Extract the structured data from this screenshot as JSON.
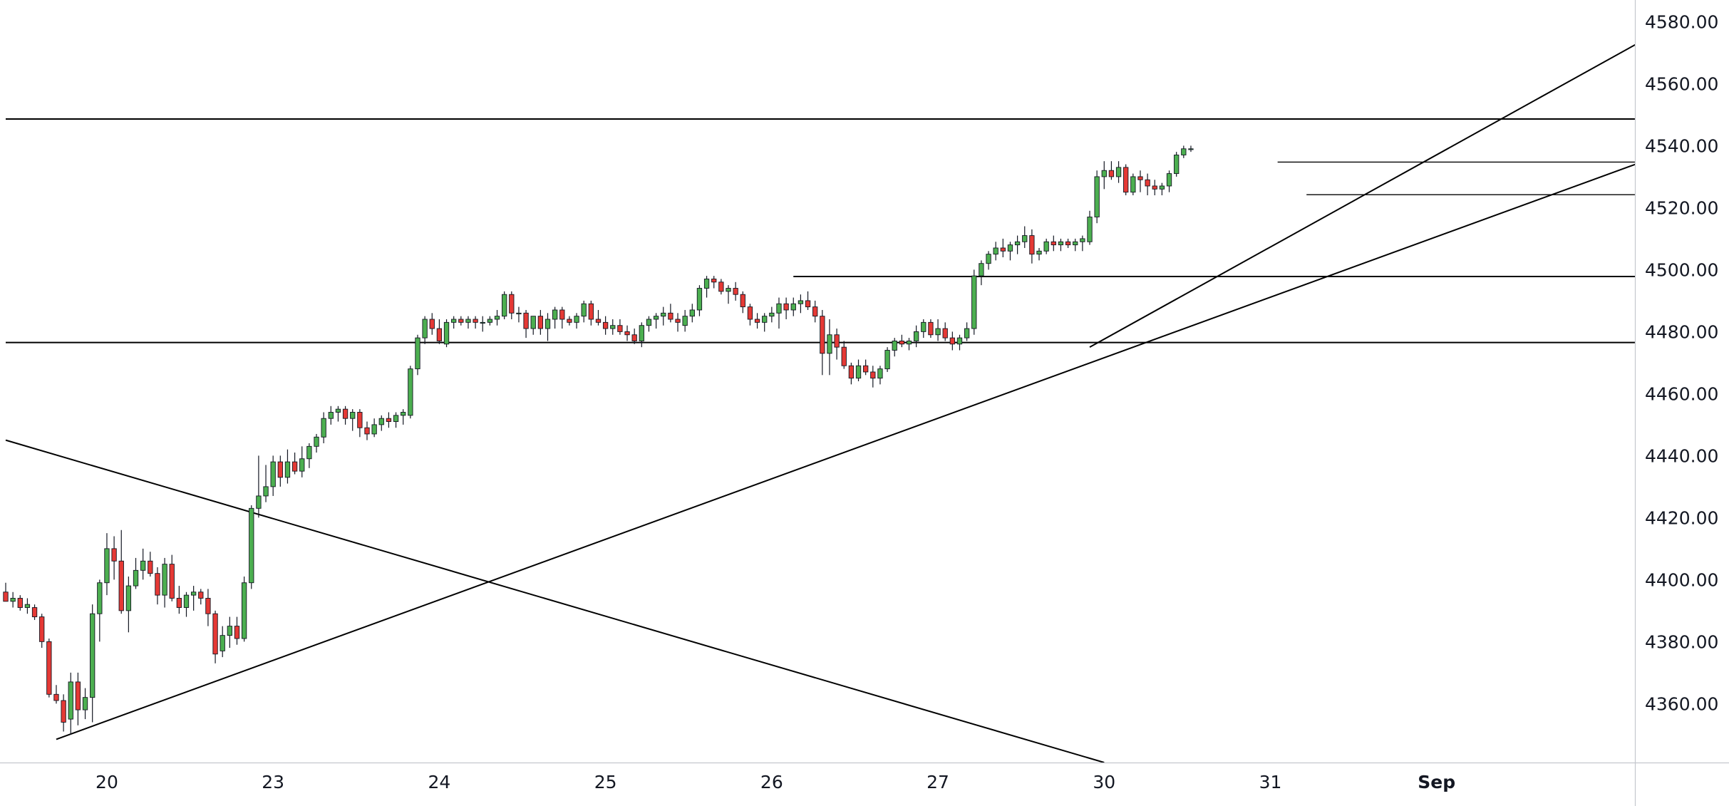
{
  "chart_data": {
    "type": "candlestick",
    "title": "",
    "xlabel": "",
    "ylabel": "",
    "ylim": [
      4341,
      4587
    ],
    "grid": false,
    "legend": "none",
    "colors": {
      "up": "#4caf50",
      "down": "#e53935",
      "wick": "#131722",
      "background": "#ffffff",
      "drawing": "#000000"
    },
    "price_axis": {
      "ticks": [
        4360,
        4380,
        4400,
        4420,
        4440,
        4460,
        4480,
        4500,
        4520,
        4540,
        4560,
        4580
      ],
      "labels": [
        "4360.00",
        "4380.00",
        "4400.00",
        "4420.00",
        "4440.00",
        "4460.00",
        "4480.00",
        "4500.00",
        "4520.00",
        "4540.00",
        "4560.00",
        "4580.00"
      ]
    },
    "time_axis": {
      "labels": [
        {
          "text": "20",
          "bar": 14,
          "bold": false
        },
        {
          "text": "23",
          "bar": 37,
          "bold": false
        },
        {
          "text": "24",
          "bar": 60,
          "bold": false
        },
        {
          "text": "25",
          "bar": 83,
          "bold": false
        },
        {
          "text": "26",
          "bar": 106,
          "bold": false
        },
        {
          "text": "27",
          "bar": 129,
          "bold": false
        },
        {
          "text": "30",
          "bar": 152,
          "bold": false
        },
        {
          "text": "31",
          "bar": 175,
          "bold": false
        },
        {
          "text": "Sep",
          "bar": 198,
          "bold": true
        }
      ]
    },
    "candles": [
      [
        4396,
        4399,
        4393,
        4393
      ],
      [
        4393,
        4396,
        4391,
        4394
      ],
      [
        4394,
        4395,
        4390,
        4391
      ],
      [
        4391,
        4394,
        4389,
        4392
      ],
      [
        4391,
        4392,
        4387,
        4388
      ],
      [
        4388,
        4389,
        4378,
        4380
      ],
      [
        4380,
        4381,
        4362,
        4363
      ],
      [
        4363,
        4366,
        4360,
        4361
      ],
      [
        4361,
        4363,
        4351,
        4354
      ],
      [
        4355,
        4370,
        4350,
        4367
      ],
      [
        4367,
        4370,
        4353,
        4358
      ],
      [
        4358,
        4365,
        4355,
        4362
      ],
      [
        4362,
        4392,
        4354,
        4389
      ],
      [
        4389,
        4400,
        4380,
        4399
      ],
      [
        4399,
        4415,
        4395,
        4410
      ],
      [
        4410,
        4414,
        4400,
        4406
      ],
      [
        4406,
        4416,
        4389,
        4390
      ],
      [
        4390,
        4401,
        4383,
        4398
      ],
      [
        4398,
        4407,
        4397,
        4403
      ],
      [
        4403,
        4410,
        4400,
        4406
      ],
      [
        4406,
        4409,
        4401,
        4402
      ],
      [
        4402,
        4404,
        4392,
        4395
      ],
      [
        4395,
        4407,
        4391,
        4405
      ],
      [
        4405,
        4408,
        4393,
        4394
      ],
      [
        4394,
        4398,
        4389,
        4391
      ],
      [
        4391,
        4396,
        4388,
        4395
      ],
      [
        4395,
        4398,
        4390,
        4396
      ],
      [
        4396,
        4397,
        4392,
        4394
      ],
      [
        4394,
        4397,
        4385,
        4389
      ],
      [
        4389,
        4390,
        4373,
        4376
      ],
      [
        4377,
        4385,
        4375,
        4382
      ],
      [
        4382,
        4388,
        4378,
        4385
      ],
      [
        4385,
        4388,
        4379,
        4381
      ],
      [
        4381,
        4401,
        4380,
        4399
      ],
      [
        4399,
        4424,
        4397,
        4423
      ],
      [
        4423,
        4440,
        4420,
        4427
      ],
      [
        4427,
        4437,
        4425,
        4430
      ],
      [
        4430,
        4440,
        4427,
        4438
      ],
      [
        4438,
        4440,
        4430,
        4433
      ],
      [
        4433,
        4442,
        4431,
        4438
      ],
      [
        4438,
        4441,
        4434,
        4435
      ],
      [
        4435,
        4443,
        4433,
        4439
      ],
      [
        4439,
        4444,
        4436,
        4443
      ],
      [
        4443,
        4447,
        4441,
        4446
      ],
      [
        4446,
        4454,
        4444,
        4452
      ],
      [
        4452,
        4456,
        4450,
        4454
      ],
      [
        4454,
        4456,
        4451,
        4455
      ],
      [
        4455,
        4456,
        4450,
        4452
      ],
      [
        4452,
        4455,
        4448,
        4454
      ],
      [
        4454,
        4455,
        4446,
        4449
      ],
      [
        4449,
        4451,
        4445,
        4447
      ],
      [
        4447,
        4452,
        4446,
        4450
      ],
      [
        4450,
        4453,
        4448,
        4452
      ],
      [
        4452,
        4454,
        4449,
        4451
      ],
      [
        4451,
        4454,
        4449,
        4453
      ],
      [
        4453,
        4455,
        4450,
        4454
      ],
      [
        4453,
        4469,
        4452,
        4468
      ],
      [
        4468,
        4479,
        4466,
        4478
      ],
      [
        4478,
        4485,
        4476,
        4484
      ],
      [
        4484,
        4486,
        4479,
        4481
      ],
      [
        4481,
        4484,
        4476,
        4477
      ],
      [
        4476,
        4484,
        4475,
        4483
      ],
      [
        4483,
        4485,
        4481,
        4484
      ],
      [
        4484,
        4485,
        4482,
        4483
      ],
      [
        4483,
        4485,
        4481,
        4484
      ],
      [
        4484,
        4485,
        4481,
        4483
      ],
      [
        4483,
        4485,
        4480,
        4483
      ],
      [
        4483,
        4485,
        4482,
        4484
      ],
      [
        4484,
        4487,
        4482,
        4485
      ],
      [
        4485,
        4493,
        4484,
        4492
      ],
      [
        4492,
        4493,
        4484,
        4486
      ],
      [
        4486,
        4488,
        4483,
        4486
      ],
      [
        4486,
        4487,
        4478,
        4481
      ],
      [
        4481,
        4485,
        4479,
        4485
      ],
      [
        4485,
        4487,
        4479,
        4481
      ],
      [
        4481,
        4486,
        4477,
        4484
      ],
      [
        4484,
        4488,
        4481,
        4487
      ],
      [
        4487,
        4488,
        4481,
        4484
      ],
      [
        4484,
        4485,
        4482,
        4483
      ],
      [
        4483,
        4486,
        4481,
        4485
      ],
      [
        4485,
        4490,
        4483,
        4489
      ],
      [
        4489,
        4490,
        4482,
        4484
      ],
      [
        4484,
        4487,
        4482,
        4483
      ],
      [
        4483,
        4485,
        4479,
        4481
      ],
      [
        4481,
        4484,
        4479,
        4482
      ],
      [
        4482,
        4484,
        4479,
        4480
      ],
      [
        4480,
        4482,
        4477,
        4479
      ],
      [
        4479,
        4481,
        4476,
        4477
      ],
      [
        4477,
        4483,
        4475,
        4482
      ],
      [
        4482,
        4485,
        4480,
        4484
      ],
      [
        4484,
        4486,
        4481,
        4485
      ],
      [
        4485,
        4488,
        4482,
        4486
      ],
      [
        4486,
        4489,
        4483,
        4484
      ],
      [
        4484,
        4486,
        4480,
        4483
      ],
      [
        4482,
        4487,
        4480,
        4485
      ],
      [
        4485,
        4489,
        4483,
        4487
      ],
      [
        4487,
        4495,
        4485,
        4494
      ],
      [
        4494,
        4498,
        4491,
        4497
      ],
      [
        4497,
        4498,
        4494,
        4496
      ],
      [
        4496,
        4497,
        4492,
        4493
      ],
      [
        4493,
        4495,
        4489,
        4494
      ],
      [
        4494,
        4496,
        4490,
        4492
      ],
      [
        4492,
        4493,
        4486,
        4488
      ],
      [
        4488,
        4489,
        4482,
        4484
      ],
      [
        4484,
        4486,
        4481,
        4483
      ],
      [
        4483,
        4486,
        4480,
        4485
      ],
      [
        4485,
        4488,
        4483,
        4486
      ],
      [
        4486,
        4491,
        4481,
        4489
      ],
      [
        4489,
        4491,
        4484,
        4487
      ],
      [
        4487,
        4491,
        4485,
        4489
      ],
      [
        4489,
        4492,
        4486,
        4490
      ],
      [
        4490,
        4493,
        4487,
        4488
      ],
      [
        4488,
        4490,
        4483,
        4485
      ],
      [
        4485,
        4487,
        4466,
        4473
      ],
      [
        4473,
        4484,
        4466,
        4479
      ],
      [
        4479,
        4481,
        4471,
        4475
      ],
      [
        4475,
        4477,
        4468,
        4469
      ],
      [
        4469,
        4470,
        4463,
        4465
      ],
      [
        4465,
        4471,
        4464,
        4469
      ],
      [
        4469,
        4471,
        4466,
        4467
      ],
      [
        4467,
        4469,
        4462,
        4465
      ],
      [
        4465,
        4469,
        4463,
        4468
      ],
      [
        4468,
        4475,
        4467,
        4474
      ],
      [
        4474,
        4478,
        4472,
        4477
      ],
      [
        4477,
        4479,
        4475,
        4476
      ],
      [
        4476,
        4478,
        4474,
        4477
      ],
      [
        4477,
        4482,
        4475,
        4480
      ],
      [
        4480,
        4484,
        4478,
        4483
      ],
      [
        4483,
        4484,
        4478,
        4479
      ],
      [
        4479,
        4484,
        4477,
        4481
      ],
      [
        4481,
        4483,
        4477,
        4478
      ],
      [
        4478,
        4480,
        4474,
        4476
      ],
      [
        4476,
        4479,
        4474,
        4478
      ],
      [
        4478,
        4483,
        4477,
        4481
      ],
      [
        4481,
        4500,
        4479,
        4498
      ],
      [
        4498,
        4503,
        4495,
        4502
      ],
      [
        4502,
        4506,
        4500,
        4505
      ],
      [
        4505,
        4509,
        4503,
        4507
      ],
      [
        4507,
        4510,
        4504,
        4506
      ],
      [
        4506,
        4509,
        4503,
        4508
      ],
      [
        4508,
        4511,
        4505,
        4509
      ],
      [
        4509,
        4514,
        4507,
        4511
      ],
      [
        4511,
        4513,
        4502,
        4505
      ],
      [
        4505,
        4507,
        4503,
        4506
      ],
      [
        4506,
        4510,
        4505,
        4509
      ],
      [
        4509,
        4511,
        4506,
        4508
      ],
      [
        4508,
        4510,
        4506,
        4509
      ],
      [
        4509,
        4510,
        4507,
        4508
      ],
      [
        4508,
        4510,
        4506,
        4509
      ],
      [
        4509,
        4511,
        4506,
        4510
      ],
      [
        4509,
        4519,
        4508,
        4517
      ],
      [
        4517,
        4532,
        4515,
        4530
      ],
      [
        4530,
        4535,
        4526,
        4532
      ],
      [
        4532,
        4535,
        4529,
        4530
      ],
      [
        4530,
        4535,
        4528,
        4533
      ],
      [
        4533,
        4534,
        4524,
        4525
      ],
      [
        4525,
        4531,
        4524,
        4530
      ],
      [
        4530,
        4532,
        4525,
        4529
      ],
      [
        4529,
        4531,
        4524,
        4527
      ],
      [
        4527,
        4529,
        4524,
        4526
      ],
      [
        4526,
        4528,
        4524,
        4527
      ],
      [
        4527,
        4532,
        4525,
        4531
      ],
      [
        4531,
        4538,
        4530,
        4537
      ],
      [
        4537,
        4540,
        4536,
        4539
      ],
      [
        4539,
        4540,
        4538,
        4539
      ]
    ],
    "drawings": {
      "horizontal_lines": [
        {
          "price": 4548.6,
          "from_bar": 0,
          "to_bar": 232
        },
        {
          "price": 4497.8,
          "from_bar": 109,
          "to_bar": 232
        },
        {
          "price": 4476.5,
          "from_bar": 0,
          "to_bar": 232
        },
        {
          "price": 4534.7,
          "from_bar": 176,
          "to_bar": 232
        },
        {
          "price": 4524.2,
          "from_bar": 180,
          "to_bar": 232
        }
      ],
      "trend_lines": [
        {
          "p1": [
            0,
            4445.0
          ],
          "p2": [
            152,
            4341.0
          ]
        },
        {
          "p1": [
            7,
            4348.5
          ],
          "p2": [
            232,
            4539.5
          ]
        },
        {
          "p1": [
            150,
            4475.0
          ],
          "p2": [
            232,
            4581.0
          ]
        }
      ]
    }
  }
}
